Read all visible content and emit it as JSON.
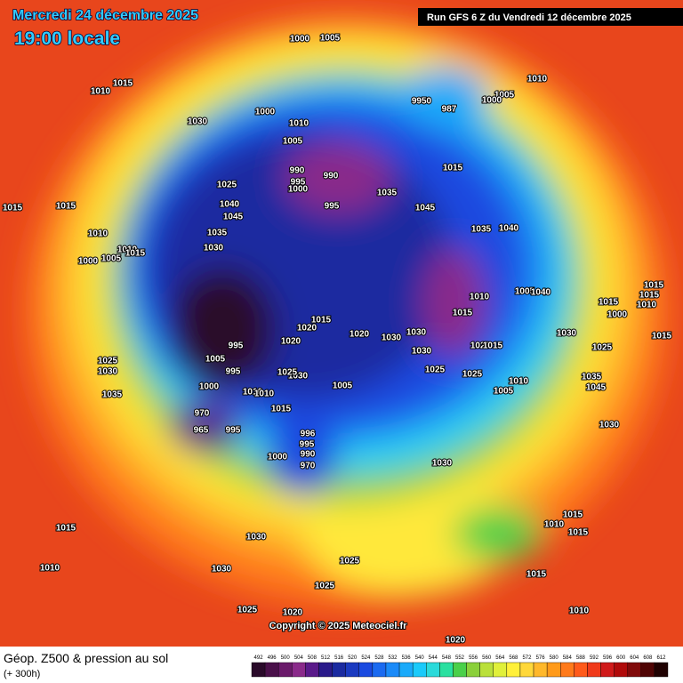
{
  "header": {
    "date": "Mercredi 24 décembre 2025",
    "time": "19:00 locale",
    "run": "Run GFS 6 Z du Vendredi 12 décembre 2025"
  },
  "copyright": "Copyright © 2025 Meteociel.fr",
  "legend": {
    "title": "Géop. Z500 & pression au sol",
    "subtitle": "(+ 300h)",
    "ticks": [
      492,
      496,
      500,
      504,
      508,
      512,
      516,
      520,
      524,
      528,
      532,
      536,
      540,
      544,
      548,
      552,
      556,
      560,
      564,
      568,
      572,
      576,
      580,
      584,
      588,
      592,
      596,
      600,
      604,
      608,
      612
    ],
    "colors": [
      "#2a0a2a",
      "#4a104a",
      "#6a1a6a",
      "#8a2a8a",
      "#5a1a8a",
      "#2a1a8a",
      "#1a2aa0",
      "#1a3ac0",
      "#1a4ae0",
      "#1a6af0",
      "#1a8af8",
      "#1aaafa",
      "#1acafa",
      "#2adada",
      "#2ae0a0",
      "#4ad04a",
      "#8ad03a",
      "#bae03a",
      "#e0f03a",
      "#fff03a",
      "#ffd83a",
      "#ffb82a",
      "#ff9a1a",
      "#ff7a1a",
      "#ff5a1a",
      "#f03a1a",
      "#d01a1a",
      "#b00a0a",
      "#800a0a",
      "#500505",
      "#200202"
    ]
  },
  "isobar_labels": [
    "1000",
    "1005",
    "1010",
    "1015",
    "1030",
    "1000",
    "1010",
    "1005",
    "9950",
    "987",
    "1005",
    "1000",
    "1010",
    "1015",
    "990",
    "995",
    "1000",
    "990",
    "995",
    "1025",
    "1040",
    "1045",
    "1035",
    "1030",
    "1035",
    "1045",
    "1035",
    "1040",
    "1015",
    "1015",
    "1010",
    "1005",
    "1000",
    "1010",
    "1015",
    "1010",
    "1015",
    "1005",
    "1040",
    "1015",
    "1000",
    "1015",
    "1015",
    "1010",
    "1015",
    "1030",
    "1025",
    "1015",
    "1020",
    "1020",
    "1020",
    "1030",
    "1030",
    "1030",
    "1025",
    "1025",
    "1020",
    "1015",
    "1010",
    "1005",
    "1035",
    "1045",
    "1030",
    "995",
    "1005",
    "995",
    "1025",
    "1030",
    "1035",
    "1000",
    "1010",
    "1010",
    "1030",
    "1025",
    "1005",
    "1015",
    "970",
    "965",
    "995",
    "996",
    "995",
    "990",
    "970",
    "1000",
    "1030",
    "1015",
    "1010",
    "1015",
    "1015",
    "1025",
    "1025",
    "1030",
    "1030",
    "1015",
    "1010",
    "1025",
    "1020",
    "1010",
    "1020"
  ]
}
